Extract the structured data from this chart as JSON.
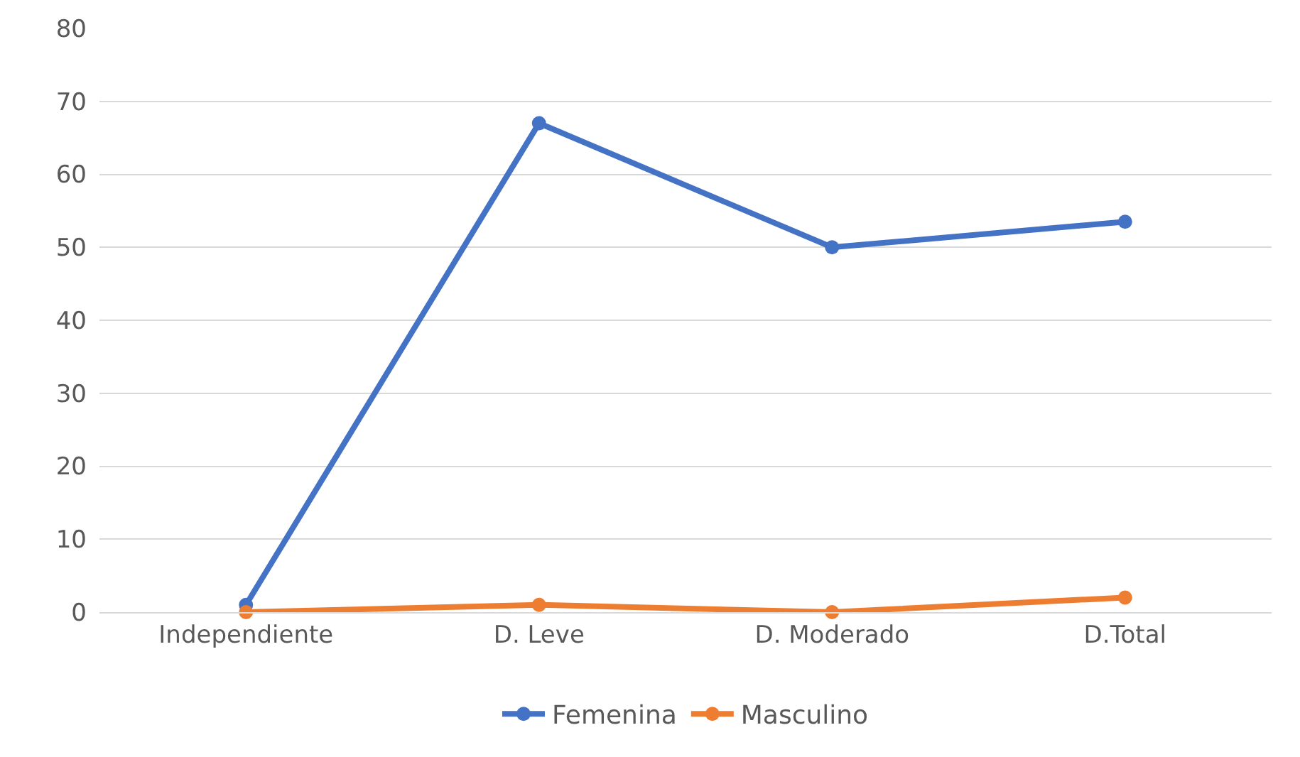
{
  "chart_data": {
    "type": "line",
    "categories": [
      "Independiente",
      "D. Leve",
      "D. Moderado",
      "D.Total"
    ],
    "series": [
      {
        "name": "Femenina",
        "color": "#4472c4",
        "values": [
          1,
          67,
          50,
          53.5
        ]
      },
      {
        "name": "Masculino",
        "color": "#ed7d31",
        "values": [
          0,
          1,
          0,
          2
        ]
      }
    ],
    "ylim": [
      0,
      80
    ],
    "yticks": [
      0,
      10,
      20,
      30,
      40,
      50,
      60,
      70,
      80
    ],
    "grid": "y",
    "legend": "bottom",
    "marker": "circle",
    "line_style": "solid"
  }
}
